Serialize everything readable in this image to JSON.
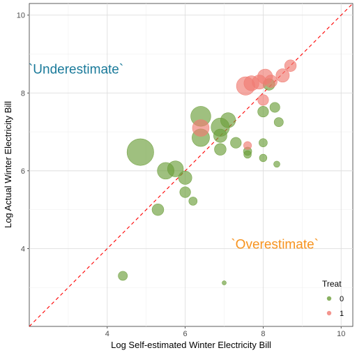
{
  "chart_data": {
    "type": "scatter",
    "title": "",
    "xlabel": "Log Self-estimated Winter Electricity Bill",
    "ylabel": "Log Actual Winter Electricity Bill",
    "xlim": [
      2.0,
      10.3
    ],
    "ylim": [
      2.0,
      10.3
    ],
    "x_ticks": [
      4,
      6,
      8,
      10
    ],
    "y_ticks": [
      4,
      6,
      8,
      10
    ],
    "x_tick_labels": [
      "4",
      "6",
      "8",
      "10"
    ],
    "y_tick_labels": [
      "4",
      "6",
      "8",
      "10"
    ],
    "grid": true,
    "reference_line": {
      "type": "y=x",
      "style": "dashed",
      "color": "#ff0000"
    },
    "annotations": [
      {
        "text": "`Underestimate`",
        "x": 3.2,
        "y": 8.5,
        "color": "#1a7a9a"
      },
      {
        "text": "`Overestimate`",
        "x": 8.3,
        "y": 4.0,
        "color": "#f7931e"
      }
    ],
    "legend": {
      "title": "Treat",
      "position": "bottom-right",
      "entries": [
        "0",
        "1"
      ]
    },
    "series": [
      {
        "name": "0",
        "color": "#6b9e3a",
        "points": [
          {
            "x": 4.85,
            "y": 6.48,
            "size": 3.2
          },
          {
            "x": 5.5,
            "y": 6.0,
            "size": 2.0
          },
          {
            "x": 5.75,
            "y": 6.05,
            "size": 1.9
          },
          {
            "x": 6.0,
            "y": 5.82,
            "size": 1.6
          },
          {
            "x": 6.0,
            "y": 5.45,
            "size": 1.3
          },
          {
            "x": 5.3,
            "y": 5.0,
            "size": 1.4
          },
          {
            "x": 6.2,
            "y": 5.22,
            "size": 1.0
          },
          {
            "x": 6.4,
            "y": 7.4,
            "size": 2.4
          },
          {
            "x": 6.4,
            "y": 6.85,
            "size": 2.1
          },
          {
            "x": 6.9,
            "y": 7.12,
            "size": 2.2
          },
          {
            "x": 7.1,
            "y": 7.3,
            "size": 1.8
          },
          {
            "x": 6.9,
            "y": 6.9,
            "size": 1.6
          },
          {
            "x": 6.9,
            "y": 6.55,
            "size": 1.4
          },
          {
            "x": 7.3,
            "y": 6.72,
            "size": 1.3
          },
          {
            "x": 7.6,
            "y": 6.5,
            "size": 1.0
          },
          {
            "x": 7.6,
            "y": 6.42,
            "size": 0.9
          },
          {
            "x": 8.0,
            "y": 7.52,
            "size": 1.3
          },
          {
            "x": 8.3,
            "y": 7.63,
            "size": 1.2
          },
          {
            "x": 8.4,
            "y": 7.25,
            "size": 1.1
          },
          {
            "x": 8.0,
            "y": 6.72,
            "size": 1.0
          },
          {
            "x": 8.0,
            "y": 6.33,
            "size": 0.9
          },
          {
            "x": 8.35,
            "y": 6.17,
            "size": 0.75
          },
          {
            "x": 4.4,
            "y": 3.3,
            "size": 1.1
          },
          {
            "x": 7.0,
            "y": 3.12,
            "size": 0.5
          },
          {
            "x": 8.15,
            "y": 8.22,
            "size": 1.4
          }
        ]
      },
      {
        "name": "1",
        "color": "#f07b72",
        "points": [
          {
            "x": 6.4,
            "y": 7.1,
            "size": 2.0
          },
          {
            "x": 7.55,
            "y": 8.18,
            "size": 2.2
          },
          {
            "x": 7.7,
            "y": 8.25,
            "size": 1.8
          },
          {
            "x": 7.9,
            "y": 8.28,
            "size": 1.7
          },
          {
            "x": 8.05,
            "y": 8.42,
            "size": 1.8
          },
          {
            "x": 8.2,
            "y": 8.3,
            "size": 1.5
          },
          {
            "x": 8.5,
            "y": 8.45,
            "size": 1.6
          },
          {
            "x": 8.7,
            "y": 8.7,
            "size": 1.4
          },
          {
            "x": 8.0,
            "y": 7.82,
            "size": 1.3
          },
          {
            "x": 7.6,
            "y": 6.65,
            "size": 0.95
          }
        ]
      }
    ]
  }
}
